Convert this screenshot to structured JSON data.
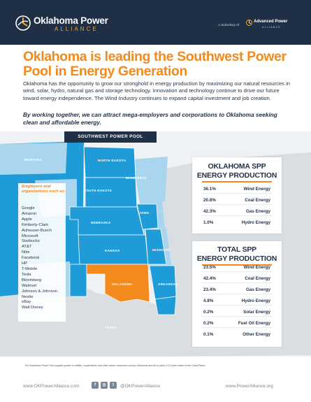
{
  "header": {
    "brand_name": "Oklahoma Power",
    "brand_sub": "ALLIANCE",
    "subsidiary_label": "A Subsidiary of",
    "parent_name": "Advanced Power",
    "parent_sub": "ALLIANCE"
  },
  "headline": "Oklahoma is leading the Southwest Power Pool in Energy Generation",
  "intro": "Oklahoma has the opportunity to grow our stronghold in energy production by maximizing our natural resources in wind, solar, hydro, natural gas and storage technology. Innovation and technology continue to drive our future toward energy independence. The Wind Industry continues to expand capital investment and job creation.",
  "callout": "By working together, we can attract mega-employers and corporations to Oklahoma seeking clean and affordable energy.",
  "map": {
    "label": "SOUTHWEST POWER POOL",
    "states": {
      "montana": "MONTANA",
      "north_dakota": "NORTH DAKOTA",
      "minnesota": "MINNESOTA",
      "south_dakota": "SOUTH DAKOTA",
      "iowa": "IOWA",
      "nebraska": "NEBRASKA",
      "kansas": "KANSAS",
      "missouri": "MISSOURI",
      "oklahoma": "OKLAHOMA",
      "arkansas": "ARKANSAS",
      "texas": "TEXAS"
    },
    "colors": {
      "spp": "#1f9bd7",
      "spp_light": "#a9d6ee",
      "oklahoma": "#f28a1e",
      "other_land": "#d9dee2",
      "border": "#ffffff"
    }
  },
  "employers": {
    "title": "Employers and organizations such as:",
    "list": [
      "Google",
      "Amazon",
      "Apple",
      "Kimberly-Clark",
      "Anheuser-Busch",
      "Microsoft",
      "Starbucks",
      "AT&T",
      "Nike",
      "Facebook",
      "HP",
      "T-Mobile",
      "Tesla",
      "Bloomberg",
      "Walmart",
      "Johnson & Johnson",
      "Nestle",
      "eBay",
      "Walt Disney"
    ]
  },
  "oklahoma_spp": {
    "title_line1": "OKLAHOMA SPP",
    "title_line2": "ENERGY PRODUCTION",
    "rows": [
      {
        "pct": "36.1%",
        "label": "Wind Energy"
      },
      {
        "pct": "20.8%",
        "label": "Coal Energy"
      },
      {
        "pct": "42.3%",
        "label": "Gas Energy"
      },
      {
        "pct": "1.0%",
        "label": "Hydro Energy"
      }
    ]
  },
  "total_spp": {
    "title_line1": "TOTAL SPP",
    "title_line2": "ENERGY PRODUCTION",
    "rows": [
      {
        "pct": "23.5%",
        "label": "Wind Energy"
      },
      {
        "pct": "42.4%",
        "label": "Coal Energy"
      },
      {
        "pct": "23.4%",
        "label": "Gas Energy"
      },
      {
        "pct": "4.8%",
        "label": "Hydro Energy"
      },
      {
        "pct": "0.2%",
        "label": "Solar Energy"
      },
      {
        "pct": "0.2%",
        "label": "Fuel Oil Energy"
      },
      {
        "pct": "0.1%",
        "label": "Other Energy"
      }
    ]
  },
  "footnote": "The Southwest Power Pool supplies power to utilities, cooperatives and other power consumers across Oklahoma and all or parts of 13 other states in the Great Plains.",
  "footer": {
    "website_left": "www.OKPowerAlliance.com",
    "social_icons": [
      "facebook-icon",
      "instagram-icon",
      "twitter-icon"
    ],
    "handle": "@OKPowerAlliance",
    "website_right": "www.PowerAlliance.org"
  }
}
